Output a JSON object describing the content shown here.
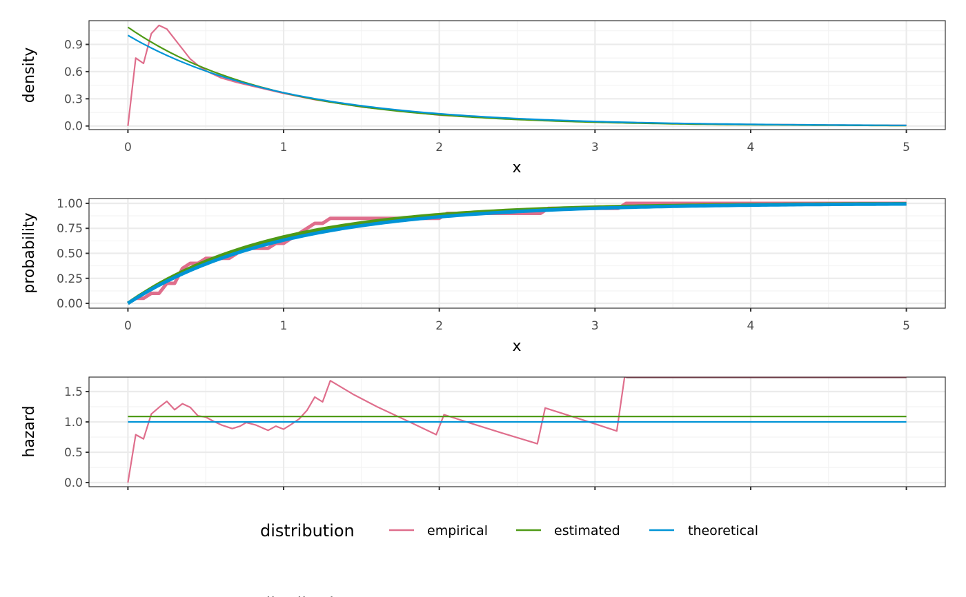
{
  "chart_data": {
    "type": "line",
    "layout": "three vertically stacked panels sharing x range, legend below",
    "colors": {
      "empirical": "#DF6E8C",
      "estimated": "#4E9A16",
      "theoretical": "#0094D6",
      "panel_border": "#333333",
      "grid_major": "#EBEBEB",
      "grid_minor": "#F2F2F2",
      "tick_text": "#4D4D4D"
    },
    "x": {
      "range": [
        -0.25,
        5.25
      ],
      "ticks": [
        0,
        1,
        2,
        3,
        4,
        5
      ],
      "tick_labels": [
        "0",
        "1",
        "2",
        "3",
        "4",
        "5"
      ],
      "minor_ticks": [
        0.5,
        1.5,
        2.5,
        3.5,
        4.5
      ]
    },
    "panels": [
      {
        "id": "density",
        "ylabel": "density",
        "xlabel": "x",
        "ylim": [
          -0.04,
          1.162
        ],
        "yticks": [
          0.0,
          0.3,
          0.6,
          0.9
        ],
        "ytick_labels": [
          "0.0",
          "0.3",
          "0.6",
          "0.9"
        ],
        "yminor": [
          0.15,
          0.45,
          0.75,
          1.05
        ],
        "pixel": {
          "left": 129,
          "right": 1370,
          "top": 30,
          "bottom": 188
        },
        "line_width": {
          "empirical": 2.2,
          "estimated": 2.2,
          "theoretical": 2.2
        },
        "series": [
          {
            "name": "empirical",
            "x": [
              0,
              0.05,
              0.1,
              0.15,
              0.2,
              0.25,
              0.3,
              0.35,
              0.4,
              0.45,
              0.5,
              0.6,
              0.7,
              0.8,
              0.9,
              1.0,
              1.2,
              1.5,
              2.0,
              2.5,
              3.0,
              3.5,
              4.0,
              4.5,
              5.0
            ],
            "y": [
              0.0,
              0.75,
              0.69,
              1.02,
              1.11,
              1.07,
              0.96,
              0.85,
              0.74,
              0.67,
              0.61,
              0.53,
              0.48,
              0.44,
              0.4,
              0.36,
              0.29,
              0.21,
              0.12,
              0.075,
              0.045,
              0.027,
              0.017,
              0.011,
              0.007
            ]
          },
          {
            "name": "estimated",
            "function": "1.09*exp(-1.09*x)",
            "rate": 1.09
          },
          {
            "name": "theoretical",
            "function": "exp(-x)",
            "rate": 1.0
          }
        ]
      },
      {
        "id": "probability",
        "ylabel": "probability",
        "xlabel": "x",
        "ylim": [
          -0.048,
          1.048
        ],
        "yticks": [
          0.0,
          0.25,
          0.5,
          0.75,
          1.0
        ],
        "ytick_labels": [
          "0.00",
          "0.25",
          "0.50",
          "0.75",
          "1.00"
        ],
        "yminor": [
          0.125,
          0.375,
          0.625,
          0.875
        ],
        "pixel": {
          "left": 129,
          "right": 1370,
          "top": 288,
          "bottom": 447
        },
        "line_width": {
          "empirical": 5,
          "estimated": 5,
          "theoretical": 5
        },
        "series": [
          {
            "name": "empirical",
            "type": "step",
            "x": [
              0,
              0.05,
              0.1,
              0.15,
              0.2,
              0.25,
              0.3,
              0.35,
              0.4,
              0.45,
              0.5,
              0.55,
              0.6,
              0.65,
              0.7,
              0.75,
              0.8,
              0.85,
              0.9,
              0.95,
              1.0,
              1.05,
              1.1,
              1.15,
              1.2,
              1.25,
              1.3,
              2.0,
              2.05,
              2.65,
              2.7,
              3.15,
              3.2,
              5.0
            ],
            "y": [
              0.0,
              0.05,
              0.05,
              0.1,
              0.1,
              0.2,
              0.2,
              0.35,
              0.4,
              0.4,
              0.45,
              0.45,
              0.45,
              0.45,
              0.5,
              0.55,
              0.55,
              0.55,
              0.55,
              0.6,
              0.6,
              0.65,
              0.7,
              0.75,
              0.8,
              0.8,
              0.85,
              0.85,
              0.9,
              0.9,
              0.95,
              0.95,
              1.0,
              1.0
            ]
          },
          {
            "name": "estimated",
            "function": "1-exp(-1.09*x)"
          },
          {
            "name": "theoretical",
            "function": "1-exp(-x)"
          }
        ]
      },
      {
        "id": "hazard",
        "ylabel": "hazard",
        "xlabel": "",
        "ylim": [
          -0.068,
          1.739
        ],
        "yticks": [
          0.0,
          0.5,
          1.0,
          1.5
        ],
        "ytick_labels": [
          "0.0",
          "0.5",
          "1.0",
          "1.5"
        ],
        "yminor": [
          0.25,
          0.75,
          1.25
        ],
        "pixel": {
          "left": 129,
          "right": 1370,
          "top": 547,
          "bottom": 706
        },
        "line_width": {
          "empirical": 2.2,
          "estimated": 2.2,
          "theoretical": 2.2
        },
        "series": [
          {
            "name": "empirical",
            "x": [
              0,
              0.05,
              0.1,
              0.15,
              0.2,
              0.25,
              0.3,
              0.35,
              0.4,
              0.45,
              0.5,
              0.55,
              0.6,
              0.67,
              0.72,
              0.76,
              0.82,
              0.9,
              0.95,
              1.0,
              1.05,
              1.1,
              1.15,
              1.2,
              1.25,
              1.3,
              1.45,
              1.6,
              1.8,
              1.98,
              2.03,
              2.2,
              2.4,
              2.63,
              2.68,
              2.9,
              3.14,
              3.19,
              3.21,
              5.0
            ],
            "y": [
              0.0,
              0.79,
              0.72,
              1.13,
              1.24,
              1.34,
              1.2,
              1.3,
              1.24,
              1.1,
              1.08,
              1.01,
              0.95,
              0.89,
              0.93,
              0.99,
              0.95,
              0.86,
              0.93,
              0.88,
              0.96,
              1.05,
              1.19,
              1.41,
              1.33,
              1.68,
              1.45,
              1.25,
              1.01,
              0.79,
              1.12,
              0.98,
              0.82,
              0.64,
              1.23,
              1.05,
              0.85,
              1.74,
              1.74,
              1.74
            ]
          },
          {
            "name": "estimated",
            "constant": 1.09
          },
          {
            "name": "theoretical",
            "constant": 1.0
          }
        ]
      }
    ],
    "legend": {
      "title": "distribution",
      "position": "bottom",
      "entries": [
        {
          "label": "empirical",
          "color": "#DF6E8C"
        },
        {
          "label": "estimated",
          "color": "#4E9A16"
        },
        {
          "label": "theoretical",
          "color": "#0094D6"
        }
      ]
    },
    "legend_duplicate_clipped": {
      "title": "distribution",
      "entries": [
        "empirical",
        "estimated",
        "theoretical"
      ],
      "note_visible": "only top sliver of text visible at bottom edge"
    }
  },
  "labels": {
    "density_ylabel": "density",
    "probability_ylabel": "probability",
    "hazard_ylabel": "hazard",
    "x_title_1": "x",
    "x_title_2": "x",
    "legend_title": "distribution",
    "legend_empirical": "empirical",
    "legend_estimated": "estimated",
    "legend_theoretical": "theoretical"
  }
}
